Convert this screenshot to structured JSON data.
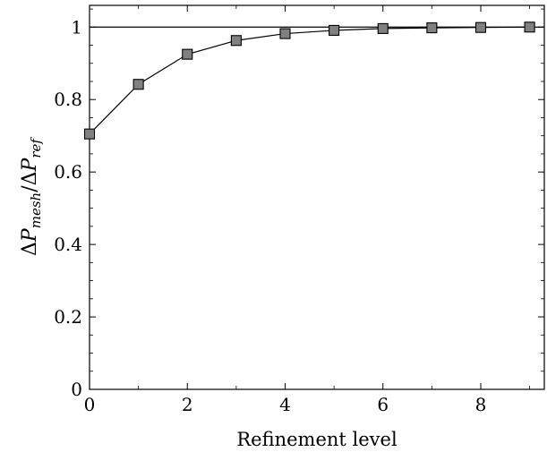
{
  "chart_data": {
    "type": "line",
    "title": "",
    "xlabel": "Refinement level",
    "ylabel": "ΔP_mesh/ΔP_ref",
    "ylabel_parts": {
      "delta1": "Δ",
      "p1": "P",
      "sub1": "mesh",
      "slash": "/",
      "delta2": "Δ",
      "p2": "P",
      "sub2": "ref"
    },
    "xlim": [
      0,
      9.3
    ],
    "ylim": [
      0,
      1.06
    ],
    "xticks": [
      0,
      2,
      4,
      6,
      8
    ],
    "xticks_minor": [
      1,
      3,
      5,
      7,
      9
    ],
    "yticks": [
      0,
      0.2,
      0.4,
      0.6,
      0.8,
      1
    ],
    "ytick_labels": [
      "0",
      "0.2",
      "0.4",
      "0.6",
      "0.8",
      "1"
    ],
    "reference_line": {
      "y": 1,
      "color": "#000000"
    },
    "grid": false,
    "series": [
      {
        "x": [
          0,
          1,
          2,
          3,
          4,
          5,
          6,
          7,
          8,
          9
        ],
        "y": [
          0.705,
          0.842,
          0.925,
          0.963,
          0.982,
          0.991,
          0.996,
          0.998,
          0.999,
          1.0
        ],
        "marker": "square",
        "marker_fill": "#808080",
        "line_color": "#000000"
      }
    ]
  }
}
